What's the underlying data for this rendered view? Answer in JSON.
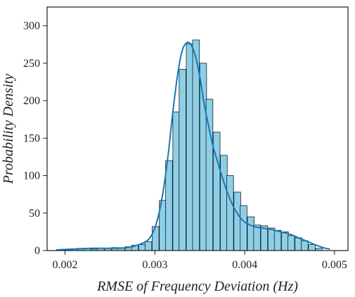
{
  "chart_data": {
    "type": "bar",
    "subtype": "histogram-with-density-curve",
    "xlabel": "RMSE of Frequency Deviation (Hz)",
    "ylabel": "Probability Density",
    "xlim": [
      0.0018,
      0.00515
    ],
    "ylim": [
      0,
      325
    ],
    "x_ticks": [
      0.002,
      0.003,
      0.004,
      0.005
    ],
    "x_tick_labels": [
      "0.002",
      "0.003",
      "0.004",
      "0.005"
    ],
    "y_ticks": [
      0,
      50,
      100,
      150,
      200,
      250,
      300
    ],
    "y_tick_labels": [
      "0",
      "50",
      "100",
      "150",
      "200",
      "250",
      "300"
    ],
    "grid": false,
    "bin_width": 7.56e-05,
    "bins": [
      {
        "x0": 0.00191,
        "value": 1
      },
      {
        "x0": 0.00199,
        "value": 1
      },
      {
        "x0": 0.00206,
        "value": 2
      },
      {
        "x0": 0.00214,
        "value": 3
      },
      {
        "x0": 0.00221,
        "value": 3
      },
      {
        "x0": 0.00229,
        "value": 2
      },
      {
        "x0": 0.00236,
        "value": 3
      },
      {
        "x0": 0.00244,
        "value": 3
      },
      {
        "x0": 0.00252,
        "value": 4
      },
      {
        "x0": 0.00259,
        "value": 3
      },
      {
        "x0": 0.00267,
        "value": 5
      },
      {
        "x0": 0.00274,
        "value": 7
      },
      {
        "x0": 0.00282,
        "value": 8
      },
      {
        "x0": 0.00289,
        "value": 12
      },
      {
        "x0": 0.00297,
        "value": 32
      },
      {
        "x0": 0.00305,
        "value": 67
      },
      {
        "x0": 0.00312,
        "value": 120
      },
      {
        "x0": 0.0032,
        "value": 185
      },
      {
        "x0": 0.00327,
        "value": 242
      },
      {
        "x0": 0.00335,
        "value": 276
      },
      {
        "x0": 0.00342,
        "value": 281
      },
      {
        "x0": 0.0035,
        "value": 250
      },
      {
        "x0": 0.00357,
        "value": 202
      },
      {
        "x0": 0.00365,
        "value": 158
      },
      {
        "x0": 0.00373,
        "value": 127
      },
      {
        "x0": 0.0038,
        "value": 100
      },
      {
        "x0": 0.00388,
        "value": 78
      },
      {
        "x0": 0.00395,
        "value": 60
      },
      {
        "x0": 0.00403,
        "value": 45
      },
      {
        "x0": 0.0041,
        "value": 34
      },
      {
        "x0": 0.00418,
        "value": 33
      },
      {
        "x0": 0.00426,
        "value": 30
      },
      {
        "x0": 0.00433,
        "value": 27
      },
      {
        "x0": 0.00441,
        "value": 25
      },
      {
        "x0": 0.00448,
        "value": 20
      },
      {
        "x0": 0.00456,
        "value": 17
      },
      {
        "x0": 0.00463,
        "value": 13
      },
      {
        "x0": 0.00471,
        "value": 8
      },
      {
        "x0": 0.00479,
        "value": 3
      }
    ],
    "density_curve": {
      "x": [
        0.0019,
        0.0021,
        0.0023,
        0.0025,
        0.0027,
        0.0028,
        0.0029,
        0.00295,
        0.003,
        0.00305,
        0.0031,
        0.00315,
        0.0032,
        0.00325,
        0.0033,
        0.00335,
        0.0034,
        0.00345,
        0.0035,
        0.00355,
        0.0036,
        0.00365,
        0.0037,
        0.00375,
        0.0038,
        0.00385,
        0.0039,
        0.00395,
        0.004,
        0.0041,
        0.0042,
        0.0043,
        0.0044,
        0.0045,
        0.0046,
        0.0047,
        0.0048,
        0.0049,
        0.00495
      ],
      "y": [
        1,
        2,
        3,
        3,
        4,
        7,
        12,
        18,
        30,
        52,
        85,
        130,
        185,
        232,
        265,
        277,
        275,
        260,
        232,
        195,
        165,
        138,
        118,
        98,
        80,
        65,
        53,
        44,
        38,
        32,
        30,
        28,
        25,
        22,
        17,
        12,
        7,
        3,
        2
      ]
    },
    "colors": {
      "bar_fill": "#8ecfe8",
      "bar_stroke": "#1a1a1a",
      "curve": "#1778b8",
      "axis": "#1a1a1a"
    }
  }
}
